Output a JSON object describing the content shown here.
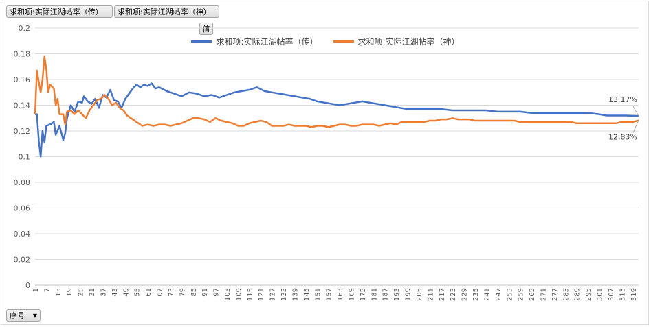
{
  "field_buttons": {
    "series_1": "求和项:实际江湖帖率（传）",
    "series_2": "求和项:实际江湖帖率（神）",
    "values": "值",
    "axis": "序号"
  },
  "chart_data": {
    "type": "line",
    "title": "",
    "xlabel": "",
    "ylabel": "",
    "ylim": [
      0,
      0.2
    ],
    "yticks": [
      0,
      0.02,
      0.04,
      0.06,
      0.08,
      0.1,
      0.12,
      0.14,
      0.16,
      0.18,
      0.2
    ],
    "ytick_labels": [
      "0",
      "0.02",
      "0.04",
      "0.06",
      "0.08",
      "0.1",
      "0.12",
      "0.14",
      "0.16",
      "0.18",
      "0.2"
    ],
    "x_range": [
      1,
      322
    ],
    "x_tick_step": 6,
    "grid": true,
    "legend_position": "top",
    "series": [
      {
        "name": "求和项:实际江湖帖率（传）",
        "color": "#4472c4",
        "end_label": "13.17%",
        "points": [
          [
            1,
            0.133
          ],
          [
            2,
            0.133
          ],
          [
            3,
            0.112
          ],
          [
            4,
            0.1
          ],
          [
            5,
            0.12
          ],
          [
            6,
            0.111
          ],
          [
            7,
            0.124
          ],
          [
            9,
            0.125
          ],
          [
            11,
            0.127
          ],
          [
            12,
            0.117
          ],
          [
            14,
            0.124
          ],
          [
            16,
            0.113
          ],
          [
            17,
            0.118
          ],
          [
            18,
            0.13
          ],
          [
            20,
            0.14
          ],
          [
            22,
            0.135
          ],
          [
            24,
            0.143
          ],
          [
            26,
            0.142
          ],
          [
            27,
            0.147
          ],
          [
            29,
            0.143
          ],
          [
            31,
            0.141
          ],
          [
            33,
            0.145
          ],
          [
            35,
            0.138
          ],
          [
            37,
            0.148
          ],
          [
            39,
            0.146
          ],
          [
            41,
            0.152
          ],
          [
            43,
            0.144
          ],
          [
            45,
            0.143
          ],
          [
            47,
            0.138
          ],
          [
            49,
            0.145
          ],
          [
            51,
            0.149
          ],
          [
            53,
            0.153
          ],
          [
            55,
            0.156
          ],
          [
            57,
            0.154
          ],
          [
            59,
            0.156
          ],
          [
            61,
            0.155
          ],
          [
            63,
            0.157
          ],
          [
            65,
            0.153
          ],
          [
            67,
            0.154
          ],
          [
            71,
            0.151
          ],
          [
            75,
            0.149
          ],
          [
            79,
            0.147
          ],
          [
            83,
            0.15
          ],
          [
            87,
            0.149
          ],
          [
            91,
            0.147
          ],
          [
            95,
            0.148
          ],
          [
            99,
            0.146
          ],
          [
            103,
            0.148
          ],
          [
            107,
            0.15
          ],
          [
            111,
            0.151
          ],
          [
            115,
            0.152
          ],
          [
            119,
            0.154
          ],
          [
            123,
            0.151
          ],
          [
            127,
            0.15
          ],
          [
            131,
            0.149
          ],
          [
            135,
            0.148
          ],
          [
            139,
            0.147
          ],
          [
            143,
            0.146
          ],
          [
            147,
            0.145
          ],
          [
            151,
            0.143
          ],
          [
            155,
            0.142
          ],
          [
            159,
            0.141
          ],
          [
            163,
            0.14
          ],
          [
            167,
            0.141
          ],
          [
            171,
            0.142
          ],
          [
            175,
            0.143
          ],
          [
            179,
            0.142
          ],
          [
            183,
            0.141
          ],
          [
            187,
            0.14
          ],
          [
            191,
            0.139
          ],
          [
            195,
            0.138
          ],
          [
            199,
            0.137
          ],
          [
            205,
            0.137
          ],
          [
            211,
            0.137
          ],
          [
            217,
            0.137
          ],
          [
            223,
            0.136
          ],
          [
            229,
            0.136
          ],
          [
            235,
            0.136
          ],
          [
            241,
            0.136
          ],
          [
            247,
            0.135
          ],
          [
            253,
            0.135
          ],
          [
            259,
            0.135
          ],
          [
            265,
            0.134
          ],
          [
            271,
            0.134
          ],
          [
            277,
            0.134
          ],
          [
            283,
            0.134
          ],
          [
            289,
            0.134
          ],
          [
            295,
            0.134
          ],
          [
            301,
            0.133
          ],
          [
            305,
            0.132
          ],
          [
            310,
            0.132
          ],
          [
            315,
            0.132
          ],
          [
            322,
            0.1317
          ]
        ]
      },
      {
        "name": "求和项:实际江湖帖率（神）",
        "color": "#ed7d31",
        "end_label": "12.83%",
        "points": [
          [
            1,
            0.133
          ],
          [
            2,
            0.167
          ],
          [
            3,
            0.158
          ],
          [
            4,
            0.15
          ],
          [
            5,
            0.16
          ],
          [
            6,
            0.178
          ],
          [
            7,
            0.168
          ],
          [
            8,
            0.15
          ],
          [
            9,
            0.156
          ],
          [
            11,
            0.153
          ],
          [
            12,
            0.14
          ],
          [
            13,
            0.145
          ],
          [
            14,
            0.133
          ],
          [
            16,
            0.133
          ],
          [
            17,
            0.125
          ],
          [
            18,
            0.135
          ],
          [
            20,
            0.136
          ],
          [
            22,
            0.133
          ],
          [
            24,
            0.136
          ],
          [
            26,
            0.133
          ],
          [
            28,
            0.13
          ],
          [
            30,
            0.136
          ],
          [
            32,
            0.14
          ],
          [
            34,
            0.144
          ],
          [
            36,
            0.145
          ],
          [
            38,
            0.148
          ],
          [
            40,
            0.145
          ],
          [
            42,
            0.14
          ],
          [
            44,
            0.142
          ],
          [
            46,
            0.138
          ],
          [
            48,
            0.136
          ],
          [
            50,
            0.132
          ],
          [
            52,
            0.13
          ],
          [
            55,
            0.127
          ],
          [
            58,
            0.124
          ],
          [
            61,
            0.125
          ],
          [
            64,
            0.124
          ],
          [
            67,
            0.125
          ],
          [
            70,
            0.125
          ],
          [
            73,
            0.124
          ],
          [
            76,
            0.125
          ],
          [
            79,
            0.126
          ],
          [
            82,
            0.128
          ],
          [
            85,
            0.13
          ],
          [
            88,
            0.13
          ],
          [
            91,
            0.129
          ],
          [
            94,
            0.127
          ],
          [
            97,
            0.13
          ],
          [
            100,
            0.128
          ],
          [
            103,
            0.127
          ],
          [
            106,
            0.126
          ],
          [
            109,
            0.124
          ],
          [
            112,
            0.124
          ],
          [
            115,
            0.126
          ],
          [
            118,
            0.127
          ],
          [
            121,
            0.128
          ],
          [
            124,
            0.127
          ],
          [
            127,
            0.124
          ],
          [
            130,
            0.124
          ],
          [
            133,
            0.124
          ],
          [
            136,
            0.125
          ],
          [
            139,
            0.124
          ],
          [
            142,
            0.124
          ],
          [
            145,
            0.124
          ],
          [
            148,
            0.123
          ],
          [
            151,
            0.124
          ],
          [
            154,
            0.124
          ],
          [
            157,
            0.123
          ],
          [
            160,
            0.124
          ],
          [
            163,
            0.125
          ],
          [
            166,
            0.125
          ],
          [
            169,
            0.124
          ],
          [
            172,
            0.124
          ],
          [
            175,
            0.125
          ],
          [
            178,
            0.125
          ],
          [
            181,
            0.125
          ],
          [
            184,
            0.124
          ],
          [
            187,
            0.125
          ],
          [
            190,
            0.126
          ],
          [
            193,
            0.125
          ],
          [
            196,
            0.127
          ],
          [
            199,
            0.127
          ],
          [
            202,
            0.127
          ],
          [
            205,
            0.127
          ],
          [
            208,
            0.127
          ],
          [
            211,
            0.128
          ],
          [
            214,
            0.128
          ],
          [
            217,
            0.129
          ],
          [
            220,
            0.129
          ],
          [
            223,
            0.13
          ],
          [
            226,
            0.129
          ],
          [
            229,
            0.129
          ],
          [
            232,
            0.129
          ],
          [
            235,
            0.128
          ],
          [
            238,
            0.128
          ],
          [
            241,
            0.128
          ],
          [
            244,
            0.128
          ],
          [
            247,
            0.128
          ],
          [
            250,
            0.128
          ],
          [
            253,
            0.128
          ],
          [
            256,
            0.128
          ],
          [
            259,
            0.127
          ],
          [
            262,
            0.127
          ],
          [
            265,
            0.127
          ],
          [
            268,
            0.127
          ],
          [
            271,
            0.127
          ],
          [
            274,
            0.127
          ],
          [
            277,
            0.127
          ],
          [
            280,
            0.127
          ],
          [
            283,
            0.127
          ],
          [
            286,
            0.127
          ],
          [
            289,
            0.126
          ],
          [
            292,
            0.126
          ],
          [
            295,
            0.126
          ],
          [
            298,
            0.126
          ],
          [
            301,
            0.126
          ],
          [
            304,
            0.126
          ],
          [
            307,
            0.126
          ],
          [
            310,
            0.126
          ],
          [
            313,
            0.127
          ],
          [
            316,
            0.127
          ],
          [
            319,
            0.127
          ],
          [
            322,
            0.1283
          ]
        ]
      }
    ]
  }
}
